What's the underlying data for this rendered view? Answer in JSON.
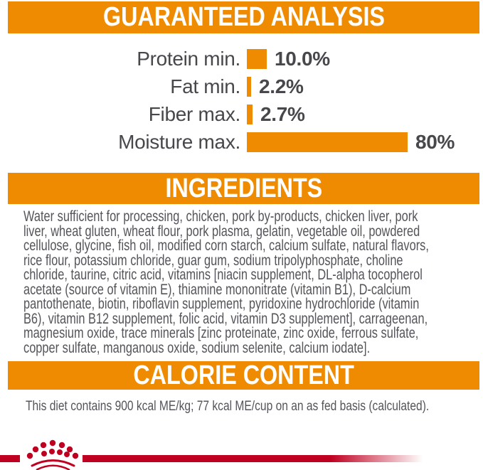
{
  "colors": {
    "orange": "#EF8B00",
    "red": "#C00021",
    "text_dark": "#47474C",
    "text_body": "#54545A",
    "banner_text": "#FFFFFF"
  },
  "guaranteed_analysis": {
    "title": "GUARANTEED ANALYSIS",
    "rows": [
      {
        "label": "Protein min.",
        "value": 10.0,
        "display": "10.0%"
      },
      {
        "label": "Fat min.",
        "value": 2.2,
        "display": "2.2%"
      },
      {
        "label": "Fiber max.",
        "value": 2.7,
        "display": "2.7%"
      },
      {
        "label": "Moisture max.",
        "value": 80,
        "display": "80%"
      }
    ]
  },
  "ingredients": {
    "title": "INGREDIENTS",
    "text": "Water sufficient for processing, chicken, pork by-products, chicken liver, pork\nliver, wheat gluten, wheat flour, pork plasma, gelatin, vegetable oil, powdered\ncellulose, glycine, fish oil, modified corn starch, calcium sulfate, natural flavors,\nrice flour, potassium chloride, guar gum, sodium tripolyphosphate, choline\nchloride, taurine, citric acid, vitamins [niacin supplement, DL-alpha tocopherol\nacetate (source of vitamin E), thiamine mononitrate (vitamin B1), D-calcium\npantothenate, biotin, riboflavin supplement, pyridoxine hydrochloride (vitamin\nB6), vitamin B12 supplement, folic acid, vitamin D3 supplement], carrageenan,\nmagnesium oxide, trace minerals [zinc proteinate, zinc oxide, ferrous sulfate,\ncopper sulfate, manganous oxide, sodium selenite, calcium iodate]."
  },
  "calorie_content": {
    "title": "CALORIE CONTENT",
    "text": "This diet contains 900 kcal ME/kg; 77 kcal ME/cup on an as fed basis (calculated)."
  },
  "footer": {
    "logo": "royal-canin-crown"
  },
  "chart_data": {
    "type": "bar",
    "orientation": "horizontal",
    "title": "GUARANTEED ANALYSIS",
    "categories": [
      "Protein min.",
      "Fat min.",
      "Fiber max.",
      "Moisture max."
    ],
    "values": [
      10.0,
      2.2,
      2.7,
      80
    ],
    "value_labels": [
      "10.0%",
      "2.2%",
      "2.7%",
      "80%"
    ],
    "xlabel": "",
    "ylabel": "",
    "xlim": [
      0,
      80
    ],
    "bar_color": "#EF8B00",
    "grid": false,
    "legend": false
  }
}
